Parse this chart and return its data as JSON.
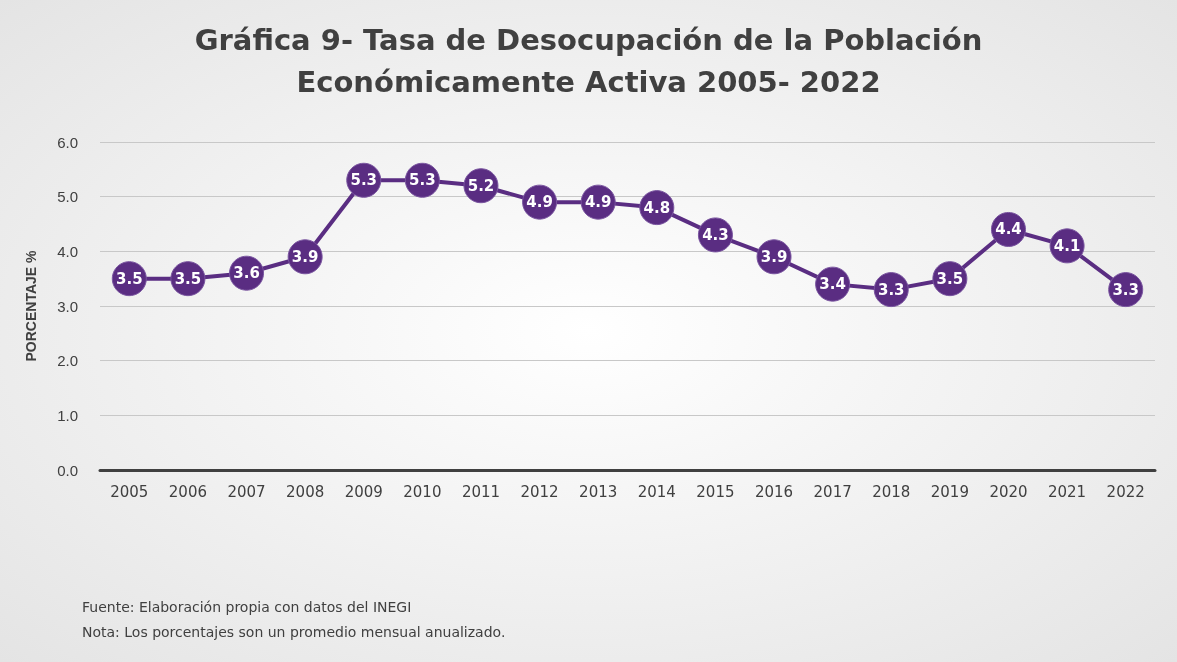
{
  "chart_data": {
    "type": "line",
    "title": "Gráfica 9- Tasa de Desocupación de la Población Económicamente Activa 2005- 2022",
    "ylabel": "PORCENTAJE %",
    "categories": [
      "2005",
      "2006",
      "2007",
      "2008",
      "2009",
      "2010",
      "2011",
      "2012",
      "2013",
      "2014",
      "2015",
      "2016",
      "2017",
      "2018",
      "2019",
      "2020",
      "2021",
      "2022"
    ],
    "series": [
      {
        "color": "#5a2d82",
        "values": [
          3.5,
          3.5,
          3.6,
          3.9,
          5.3,
          5.3,
          5.2,
          4.9,
          4.9,
          4.8,
          4.3,
          3.9,
          3.4,
          3.3,
          3.5,
          4.4,
          4.1,
          3.3
        ]
      }
    ],
    "ylim": [
      0,
      6
    ],
    "yticks": [
      {
        "value": 0,
        "label": "0.0"
      },
      {
        "value": 1,
        "label": "1.0"
      },
      {
        "value": 2,
        "label": "2.0"
      },
      {
        "value": 3,
        "label": "3.0"
      },
      {
        "value": 4,
        "label": "4.0"
      },
      {
        "value": 5,
        "label": "5.0"
      },
      {
        "value": 6,
        "label": "6.0"
      }
    ],
    "grid": "y",
    "marker": "circle",
    "line_style": "solid",
    "data_labels": true,
    "annotations": [
      "Fuente: Elaboración propia con datos del INEGI",
      "Nota: Los porcentajes son un promedio mensual anualizado."
    ]
  }
}
